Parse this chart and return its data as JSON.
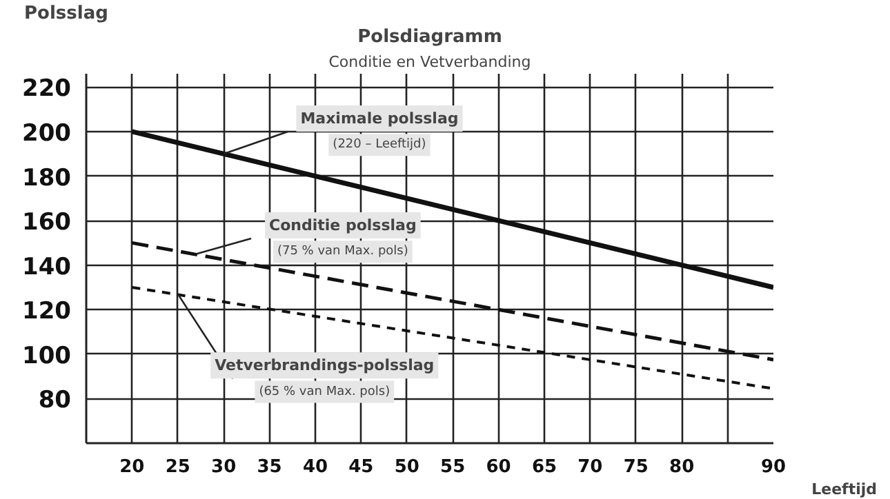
{
  "chart_data": {
    "type": "line",
    "title": "Polsdiagramm",
    "subtitle": "Conditie en Vetverbanding",
    "xlabel": "Leeftijd",
    "ylabel": "Polsslag",
    "x": [
      20,
      90
    ],
    "series": [
      {
        "color": "#111111",
        "values": [
          200,
          130
        ],
        "line_style": "solid"
      },
      {
        "color": "#111111",
        "values": [
          150,
          97.5
        ],
        "line_style": "dashed"
      },
      {
        "color": "#111111",
        "values": [
          130,
          84.5
        ],
        "line_style": "dotted"
      }
    ],
    "annotations": [
      {
        "text": "Maximale polsslag\n(220 – Leeftijd)",
        "x": 30,
        "y": 190
      },
      {
        "text": "Conditie polsslag\n(75 % van Max. pols)",
        "x": 27,
        "y": 145
      },
      {
        "text": "Vetverbrandings-polsslag\n(65 % van Max. pols)",
        "x": 25,
        "y": 127
      }
    ],
    "xlim": [
      15,
      90
    ],
    "ylim": [
      60,
      226
    ],
    "xticks": [
      20,
      25,
      30,
      35,
      40,
      45,
      50,
      55,
      60,
      65,
      70,
      75,
      80,
      {
        "value": 85,
        "label": null
      },
      90
    ],
    "yticks": [
      80,
      100,
      120,
      140,
      160,
      180,
      200,
      220
    ],
    "grid": true,
    "marker": "none"
  }
}
